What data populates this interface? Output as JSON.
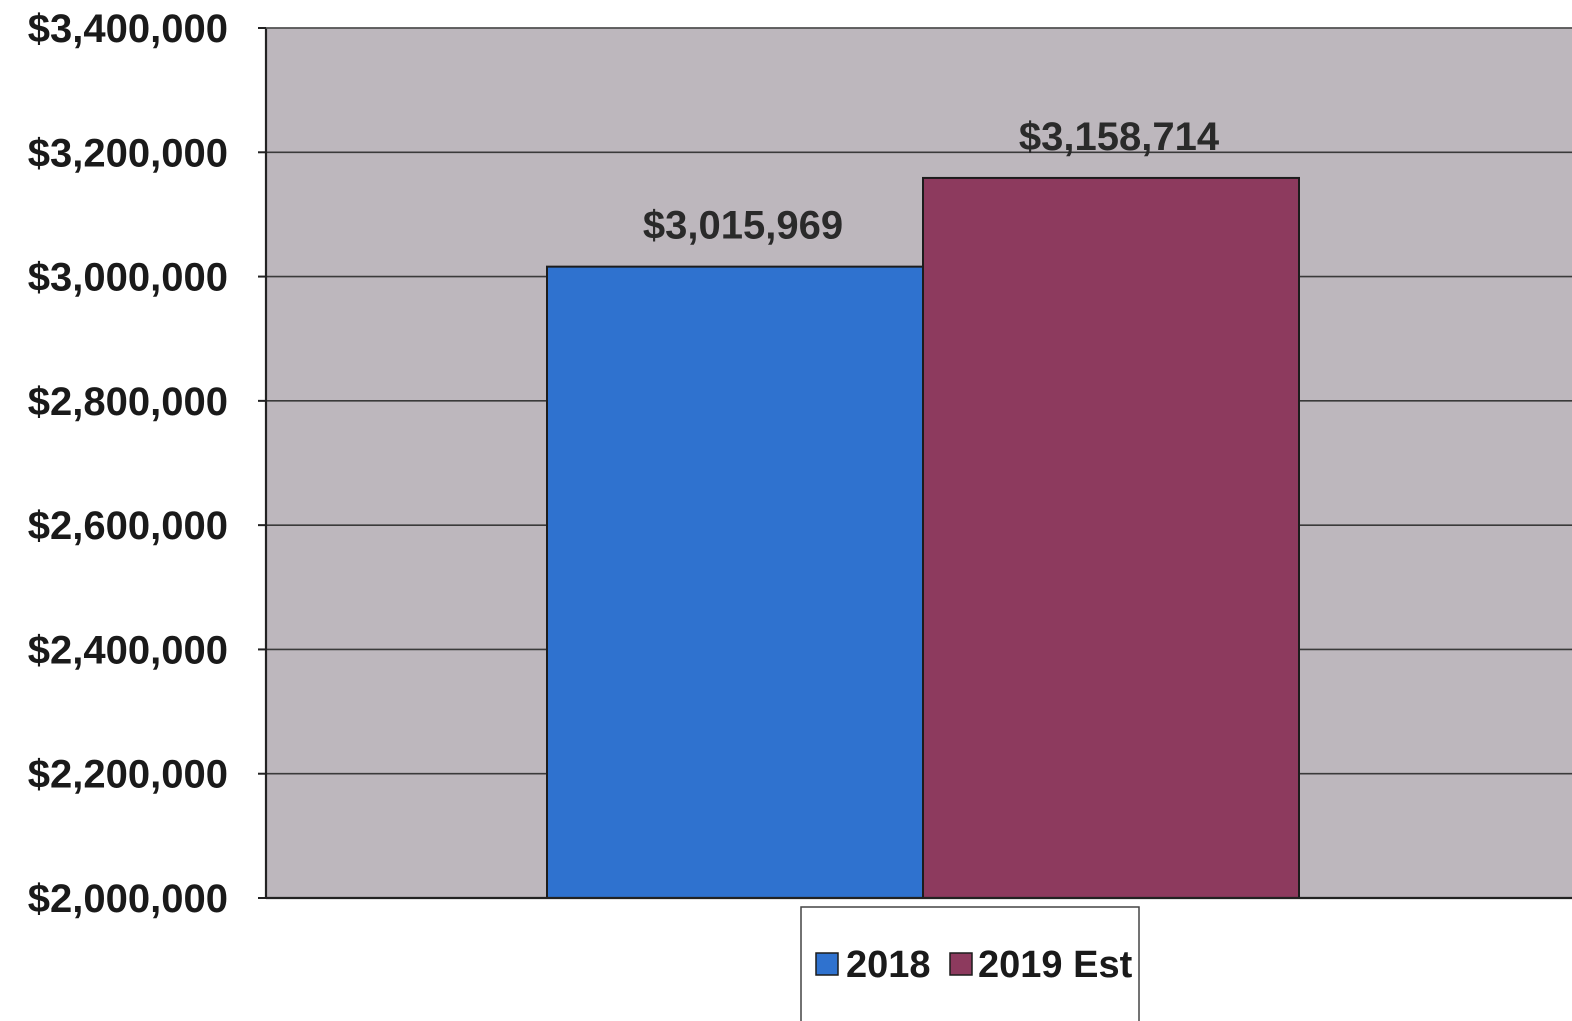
{
  "chart_data": {
    "type": "bar",
    "title": "",
    "xlabel": "",
    "ylabel": "",
    "categories": [
      ""
    ],
    "series": [
      {
        "name": "2018",
        "values": [
          3015969
        ],
        "color": "#2f72cf",
        "data_label": "$3,015,969"
      },
      {
        "name": "2019 Est",
        "values": [
          3158714
        ],
        "color": "#8d3a5e",
        "data_label": "$3,158,714"
      }
    ],
    "ylim": [
      2000000,
      3400000
    ],
    "y_ticks": [
      {
        "value": 2000000,
        "label": "$2,000,000"
      },
      {
        "value": 2200000,
        "label": "$2,200,000"
      },
      {
        "value": 2400000,
        "label": "$2,400,000"
      },
      {
        "value": 2600000,
        "label": "$2,600,000"
      },
      {
        "value": 2800000,
        "label": "$2,800,000"
      },
      {
        "value": 3000000,
        "label": "$3,000,000"
      },
      {
        "value": 3200000,
        "label": "$3,200,000"
      },
      {
        "value": 3400000,
        "label": "$3,400,000"
      }
    ],
    "grid": true,
    "legend_position": "bottom",
    "plot_background": "#bdb7bd"
  }
}
